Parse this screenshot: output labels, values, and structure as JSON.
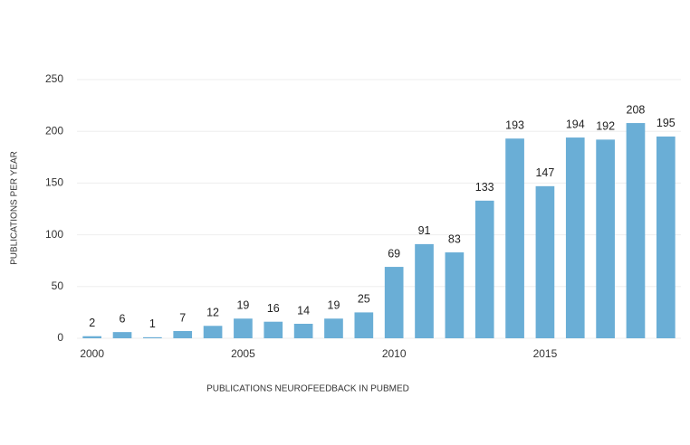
{
  "chart_data": {
    "type": "bar",
    "x_label": "PUBLICATIONS NEUROFEEDBACK IN PUBMED",
    "y_label": "PUBLICATIONS PER YEAR",
    "categories": [
      "2000",
      null,
      null,
      null,
      null,
      "2005",
      null,
      null,
      null,
      null,
      "2010",
      null,
      null,
      null,
      null,
      "2015",
      null,
      null,
      null,
      null
    ],
    "values": [
      2,
      6,
      1,
      7,
      12,
      19,
      16,
      14,
      19,
      25,
      69,
      91,
      83,
      133,
      193,
      147,
      194,
      192,
      208,
      195
    ],
    "color": "#6aaed6",
    "ylim": [
      0,
      250
    ],
    "yticks": [
      0,
      50,
      100,
      150,
      200,
      250
    ],
    "grid": true
  }
}
